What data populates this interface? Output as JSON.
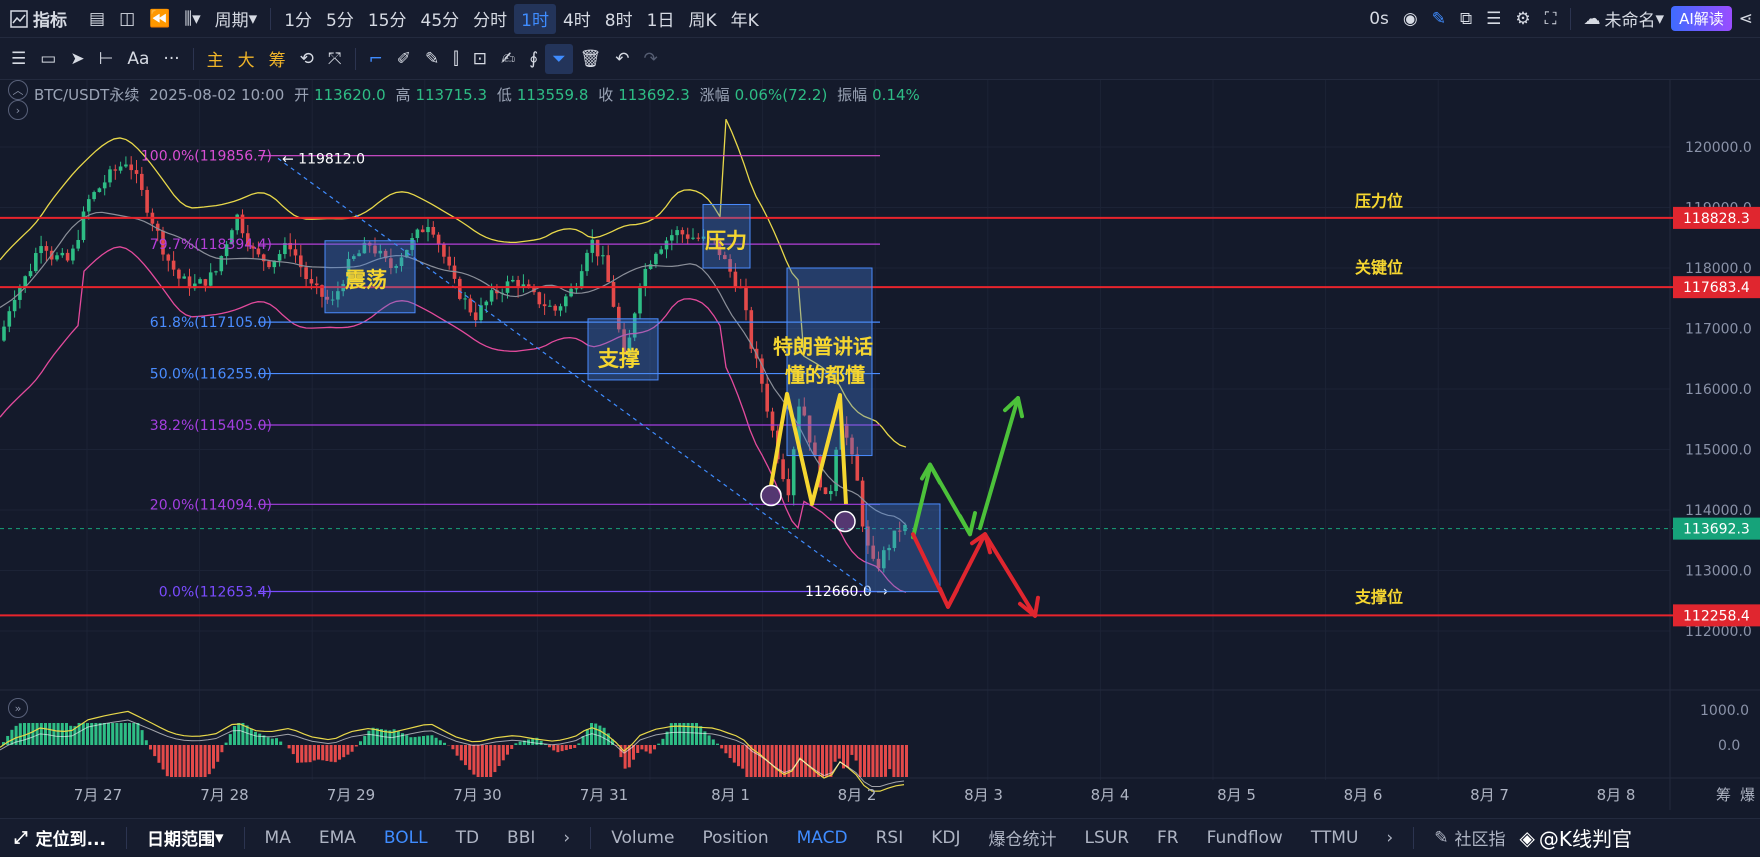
{
  "topbar": {
    "indicators_label": "指标",
    "period_label": "周期",
    "intervals": [
      "1分",
      "5分",
      "15分",
      "45分",
      "分时",
      "1时",
      "4时",
      "8时",
      "1日",
      "周K",
      "年K"
    ],
    "active_interval": "1时",
    "timer": "0s",
    "layout_name": "未命名",
    "ai_label": "AI解读"
  },
  "toolbar2": {
    "labels": [
      "Aa",
      "主",
      "大",
      "筹"
    ]
  },
  "info": {
    "symbol": "BTC/USDT永续",
    "datetime": "2025-08-02 10:00",
    "open_label": "开",
    "open": "113620.0",
    "high_label": "高",
    "high": "113715.3",
    "low_label": "低",
    "low": "113559.8",
    "close_label": "收",
    "close": "113692.3",
    "change_label": "涨幅",
    "change": "0.06%(72.2)",
    "amp_label": "振幅",
    "amp": "0.14%"
  },
  "price_axis": {
    "ticks": [
      "120000.0",
      "119000.0",
      "118000.0",
      "117000.0",
      "116000.0",
      "115000.0",
      "114000.0",
      "113000.0",
      "112000.0"
    ],
    "tags": [
      {
        "label": "118828.3",
        "color": "#e0262f"
      },
      {
        "label": "117683.4",
        "color": "#e0262f"
      },
      {
        "label": "113692.3",
        "color": "#16a37a"
      },
      {
        "label": "112258.4",
        "color": "#e0262f"
      }
    ],
    "macd_ticks": [
      "1000.0",
      "0.0"
    ]
  },
  "fib_levels": [
    {
      "label": "100.0%(119856.7)",
      "color": "#d94fd3"
    },
    {
      "label": "79.7%(118394.4)",
      "color": "#b43fd8"
    },
    {
      "label": "61.8%(117105.0)",
      "color": "#4a8cff"
    },
    {
      "label": "50.0%(116255.0)",
      "color": "#4a8cff"
    },
    {
      "label": "38.2%(115405.0)",
      "color": "#a43fe0"
    },
    {
      "label": "20.0%(114094.0)",
      "color": "#a43fe0"
    },
    {
      "label": "0.0%(112653.4)",
      "color": "#7a4cff"
    }
  ],
  "annotations": {
    "high_mark": "119812.0",
    "low_mark": "112660.0",
    "range_box": "震荡",
    "support_box": "支撑",
    "resistance_box": "压力",
    "trump_line1": "特朗普讲话",
    "trump_line2": "懂的都懂",
    "pressure": "压力位",
    "key": "关键位",
    "support": "支撑位"
  },
  "time_axis": [
    "7月 27",
    "7月 28",
    "7月 29",
    "7月 30",
    "7月 31",
    "8月 1",
    "8月 2",
    "8月 3",
    "8月 4",
    "8月 5",
    "8月 6",
    "8月 7",
    "8月 8"
  ],
  "axis_corner": [
    "筹",
    "爆"
  ],
  "bottombar": {
    "locate": "定位到...",
    "date_range": "日期范围",
    "main_indicators": [
      "MA",
      "EMA",
      "BOLL",
      "TD",
      "BBI"
    ],
    "active_main": "BOLL",
    "sub_indicators": [
      "Volume",
      "Position",
      "MACD",
      "RSI",
      "KDJ",
      "爆仓统计",
      "LSUR",
      "FR",
      "Fundflow",
      "TTMU"
    ],
    "active_sub": "MACD",
    "community": "社区指",
    "watermark": "@K线判官"
  },
  "colors": {
    "up": "#2ebd85",
    "down": "#e34a4a",
    "accent": "#3f8cff",
    "boll_upper": "#e8d84a",
    "boll_mid": "#8b8f99",
    "boll_lower": "#e34a9c",
    "level_line": "#e8242c",
    "annotation": "#f5d630"
  }
}
